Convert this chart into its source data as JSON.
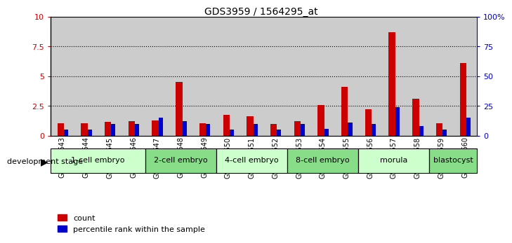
{
  "title": "GDS3959 / 1564295_at",
  "samples": [
    "GSM456643",
    "GSM456644",
    "GSM456645",
    "GSM456646",
    "GSM456647",
    "GSM456648",
    "GSM456649",
    "GSM456650",
    "GSM456651",
    "GSM456652",
    "GSM456653",
    "GSM456654",
    "GSM456655",
    "GSM456656",
    "GSM456657",
    "GSM456658",
    "GSM456659",
    "GSM456660"
  ],
  "count_values": [
    1.05,
    1.05,
    1.15,
    1.2,
    1.3,
    4.55,
    1.05,
    1.75,
    1.65,
    1.0,
    1.2,
    2.6,
    4.1,
    2.2,
    8.7,
    3.1,
    1.05,
    6.1
  ],
  "percentile_values": [
    5,
    5,
    10,
    10,
    15,
    12,
    10,
    5,
    10,
    5,
    10,
    6,
    11,
    10,
    24,
    8,
    5,
    15
  ],
  "stages": [
    {
      "label": "1-cell embryo",
      "start": 0,
      "end": 4,
      "color": "#ccffcc"
    },
    {
      "label": "2-cell embryo",
      "start": 4,
      "end": 7,
      "color": "#88dd88"
    },
    {
      "label": "4-cell embryo",
      "start": 7,
      "end": 10,
      "color": "#ccffcc"
    },
    {
      "label": "8-cell embryo",
      "start": 10,
      "end": 13,
      "color": "#88dd88"
    },
    {
      "label": "morula",
      "start": 13,
      "end": 16,
      "color": "#ccffcc"
    },
    {
      "label": "blastocyst",
      "start": 16,
      "end": 18,
      "color": "#88dd88"
    }
  ],
  "ylim_left": [
    0,
    10
  ],
  "ylim_right": [
    0,
    100
  ],
  "bar_color_red": "#cc0000",
  "bar_color_blue": "#0000cc",
  "tick_color_left": "#cc0000",
  "tick_color_right": "#0000cc",
  "yticks_left": [
    0,
    2.5,
    5.0,
    7.5,
    10
  ],
  "ytick_labels_left": [
    "0",
    "2.5",
    "5",
    "7.5",
    "10"
  ],
  "yticks_right": [
    0,
    25,
    50,
    75,
    100
  ],
  "ytick_labels_right": [
    "0",
    "25",
    "50",
    "75",
    "100%"
  ],
  "background_color": "#ffffff",
  "bar_bg_color": "#cccccc"
}
